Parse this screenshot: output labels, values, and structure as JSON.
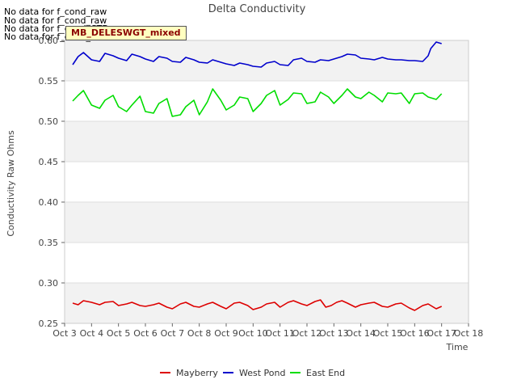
{
  "notices": [
    "No data for f_cond_raw",
    "No data for f_cond_raw",
    "No data for f_cond_CTD",
    "No data for f_cond_CTD"
  ],
  "badge": "MB_DELESWGT_mixed",
  "chart_data": {
    "type": "line",
    "title": "Delta Conductivity",
    "xlabel": "Time",
    "ylabel": "Conductivity Raw Ohms",
    "xlim": [
      3,
      18
    ],
    "ylim": [
      0.25,
      0.6
    ],
    "xticks": [
      {
        "value": 3,
        "label": "Oct 3"
      },
      {
        "value": 4,
        "label": "Oct 4"
      },
      {
        "value": 5,
        "label": "Oct 5"
      },
      {
        "value": 6,
        "label": "Oct 6"
      },
      {
        "value": 7,
        "label": "Oct 7"
      },
      {
        "value": 8,
        "label": "Oct 8"
      },
      {
        "value": 9,
        "label": "Oct 9"
      },
      {
        "value": 10,
        "label": "Oct 10"
      },
      {
        "value": 11,
        "label": "Oct 11"
      },
      {
        "value": 12,
        "label": "Oct 12"
      },
      {
        "value": 13,
        "label": "Oct 13"
      },
      {
        "value": 14,
        "label": "Oct 14"
      },
      {
        "value": 15,
        "label": "Oct 15"
      },
      {
        "value": 16,
        "label": "Oct 16"
      },
      {
        "value": 17,
        "label": "Oct 17"
      },
      {
        "value": 18,
        "label": "Oct 18"
      }
    ],
    "yticks": [
      {
        "value": 0.25,
        "label": "0.25"
      },
      {
        "value": 0.3,
        "label": "0.30"
      },
      {
        "value": 0.35,
        "label": "0.35"
      },
      {
        "value": 0.4,
        "label": "0.40"
      },
      {
        "value": 0.45,
        "label": "0.45"
      },
      {
        "value": 0.5,
        "label": "0.50"
      },
      {
        "value": 0.55,
        "label": "0.55"
      },
      {
        "value": 0.6,
        "label": "0.60"
      }
    ],
    "grid": true,
    "legend": "bottom",
    "series": [
      {
        "name": "Mayberry",
        "color": "#dd0000",
        "x": [
          3.3,
          3.5,
          3.7,
          4.0,
          4.3,
          4.5,
          4.8,
          5.0,
          5.3,
          5.5,
          5.8,
          6.0,
          6.3,
          6.5,
          6.8,
          7.0,
          7.3,
          7.5,
          7.8,
          8.0,
          8.3,
          8.5,
          8.8,
          9.0,
          9.3,
          9.5,
          9.8,
          10.0,
          10.3,
          10.5,
          10.8,
          11.0,
          11.3,
          11.5,
          11.8,
          12.0,
          12.3,
          12.5,
          12.7,
          12.9,
          13.1,
          13.3,
          13.5,
          13.8,
          14.0,
          14.3,
          14.5,
          14.8,
          15.0,
          15.3,
          15.5,
          15.8,
          16.0,
          16.3,
          16.5,
          16.8,
          17.0
        ],
        "y": [
          0.275,
          0.273,
          0.278,
          0.276,
          0.273,
          0.276,
          0.277,
          0.272,
          0.274,
          0.276,
          0.272,
          0.271,
          0.273,
          0.275,
          0.27,
          0.268,
          0.274,
          0.276,
          0.271,
          0.27,
          0.274,
          0.276,
          0.271,
          0.268,
          0.275,
          0.276,
          0.272,
          0.267,
          0.27,
          0.274,
          0.276,
          0.27,
          0.276,
          0.278,
          0.274,
          0.272,
          0.277,
          0.279,
          0.27,
          0.272,
          0.276,
          0.278,
          0.275,
          0.27,
          0.273,
          0.275,
          0.276,
          0.271,
          0.27,
          0.274,
          0.275,
          0.269,
          0.266,
          0.272,
          0.274,
          0.268,
          0.271
        ]
      },
      {
        "name": "West Pond",
        "color": "#0000cc",
        "x": [
          3.3,
          3.5,
          3.7,
          4.0,
          4.3,
          4.5,
          4.8,
          5.0,
          5.3,
          5.5,
          5.8,
          6.0,
          6.3,
          6.5,
          6.8,
          7.0,
          7.3,
          7.5,
          7.8,
          8.0,
          8.3,
          8.5,
          8.8,
          9.0,
          9.3,
          9.5,
          9.8,
          10.0,
          10.3,
          10.5,
          10.8,
          11.0,
          11.3,
          11.5,
          11.8,
          12.0,
          12.3,
          12.5,
          12.8,
          13.0,
          13.3,
          13.5,
          13.8,
          14.0,
          14.3,
          14.5,
          14.8,
          15.0,
          15.3,
          15.5,
          15.8,
          16.0,
          16.3,
          16.5,
          16.6,
          16.8,
          17.0
        ],
        "y": [
          0.57,
          0.58,
          0.585,
          0.576,
          0.574,
          0.584,
          0.581,
          0.578,
          0.575,
          0.583,
          0.58,
          0.577,
          0.574,
          0.58,
          0.578,
          0.574,
          0.573,
          0.579,
          0.576,
          0.573,
          0.572,
          0.576,
          0.573,
          0.571,
          0.569,
          0.572,
          0.57,
          0.568,
          0.567,
          0.572,
          0.574,
          0.57,
          0.569,
          0.576,
          0.578,
          0.574,
          0.573,
          0.576,
          0.575,
          0.577,
          0.58,
          0.583,
          0.582,
          0.578,
          0.577,
          0.576,
          0.579,
          0.577,
          0.576,
          0.576,
          0.575,
          0.575,
          0.574,
          0.581,
          0.59,
          0.598,
          0.596
        ]
      },
      {
        "name": "East End",
        "color": "#00dd00",
        "x": [
          3.3,
          3.5,
          3.7,
          4.0,
          4.3,
          4.5,
          4.8,
          5.0,
          5.3,
          5.5,
          5.8,
          6.0,
          6.3,
          6.5,
          6.8,
          7.0,
          7.3,
          7.5,
          7.8,
          8.0,
          8.3,
          8.5,
          8.8,
          9.0,
          9.3,
          9.5,
          9.8,
          10.0,
          10.3,
          10.5,
          10.8,
          11.0,
          11.3,
          11.5,
          11.8,
          12.0,
          12.3,
          12.5,
          12.8,
          13.0,
          13.3,
          13.5,
          13.8,
          14.0,
          14.3,
          14.5,
          14.8,
          15.0,
          15.3,
          15.5,
          15.8,
          16.0,
          16.3,
          16.5,
          16.8,
          17.0
        ],
        "y": [
          0.525,
          0.532,
          0.538,
          0.52,
          0.516,
          0.526,
          0.532,
          0.518,
          0.512,
          0.52,
          0.531,
          0.512,
          0.51,
          0.522,
          0.528,
          0.506,
          0.508,
          0.518,
          0.526,
          0.508,
          0.524,
          0.54,
          0.526,
          0.514,
          0.52,
          0.53,
          0.528,
          0.512,
          0.522,
          0.532,
          0.538,
          0.52,
          0.527,
          0.535,
          0.534,
          0.522,
          0.524,
          0.536,
          0.53,
          0.522,
          0.532,
          0.54,
          0.53,
          0.528,
          0.536,
          0.532,
          0.524,
          0.535,
          0.534,
          0.535,
          0.522,
          0.534,
          0.535,
          0.53,
          0.527,
          0.534
        ]
      }
    ]
  }
}
